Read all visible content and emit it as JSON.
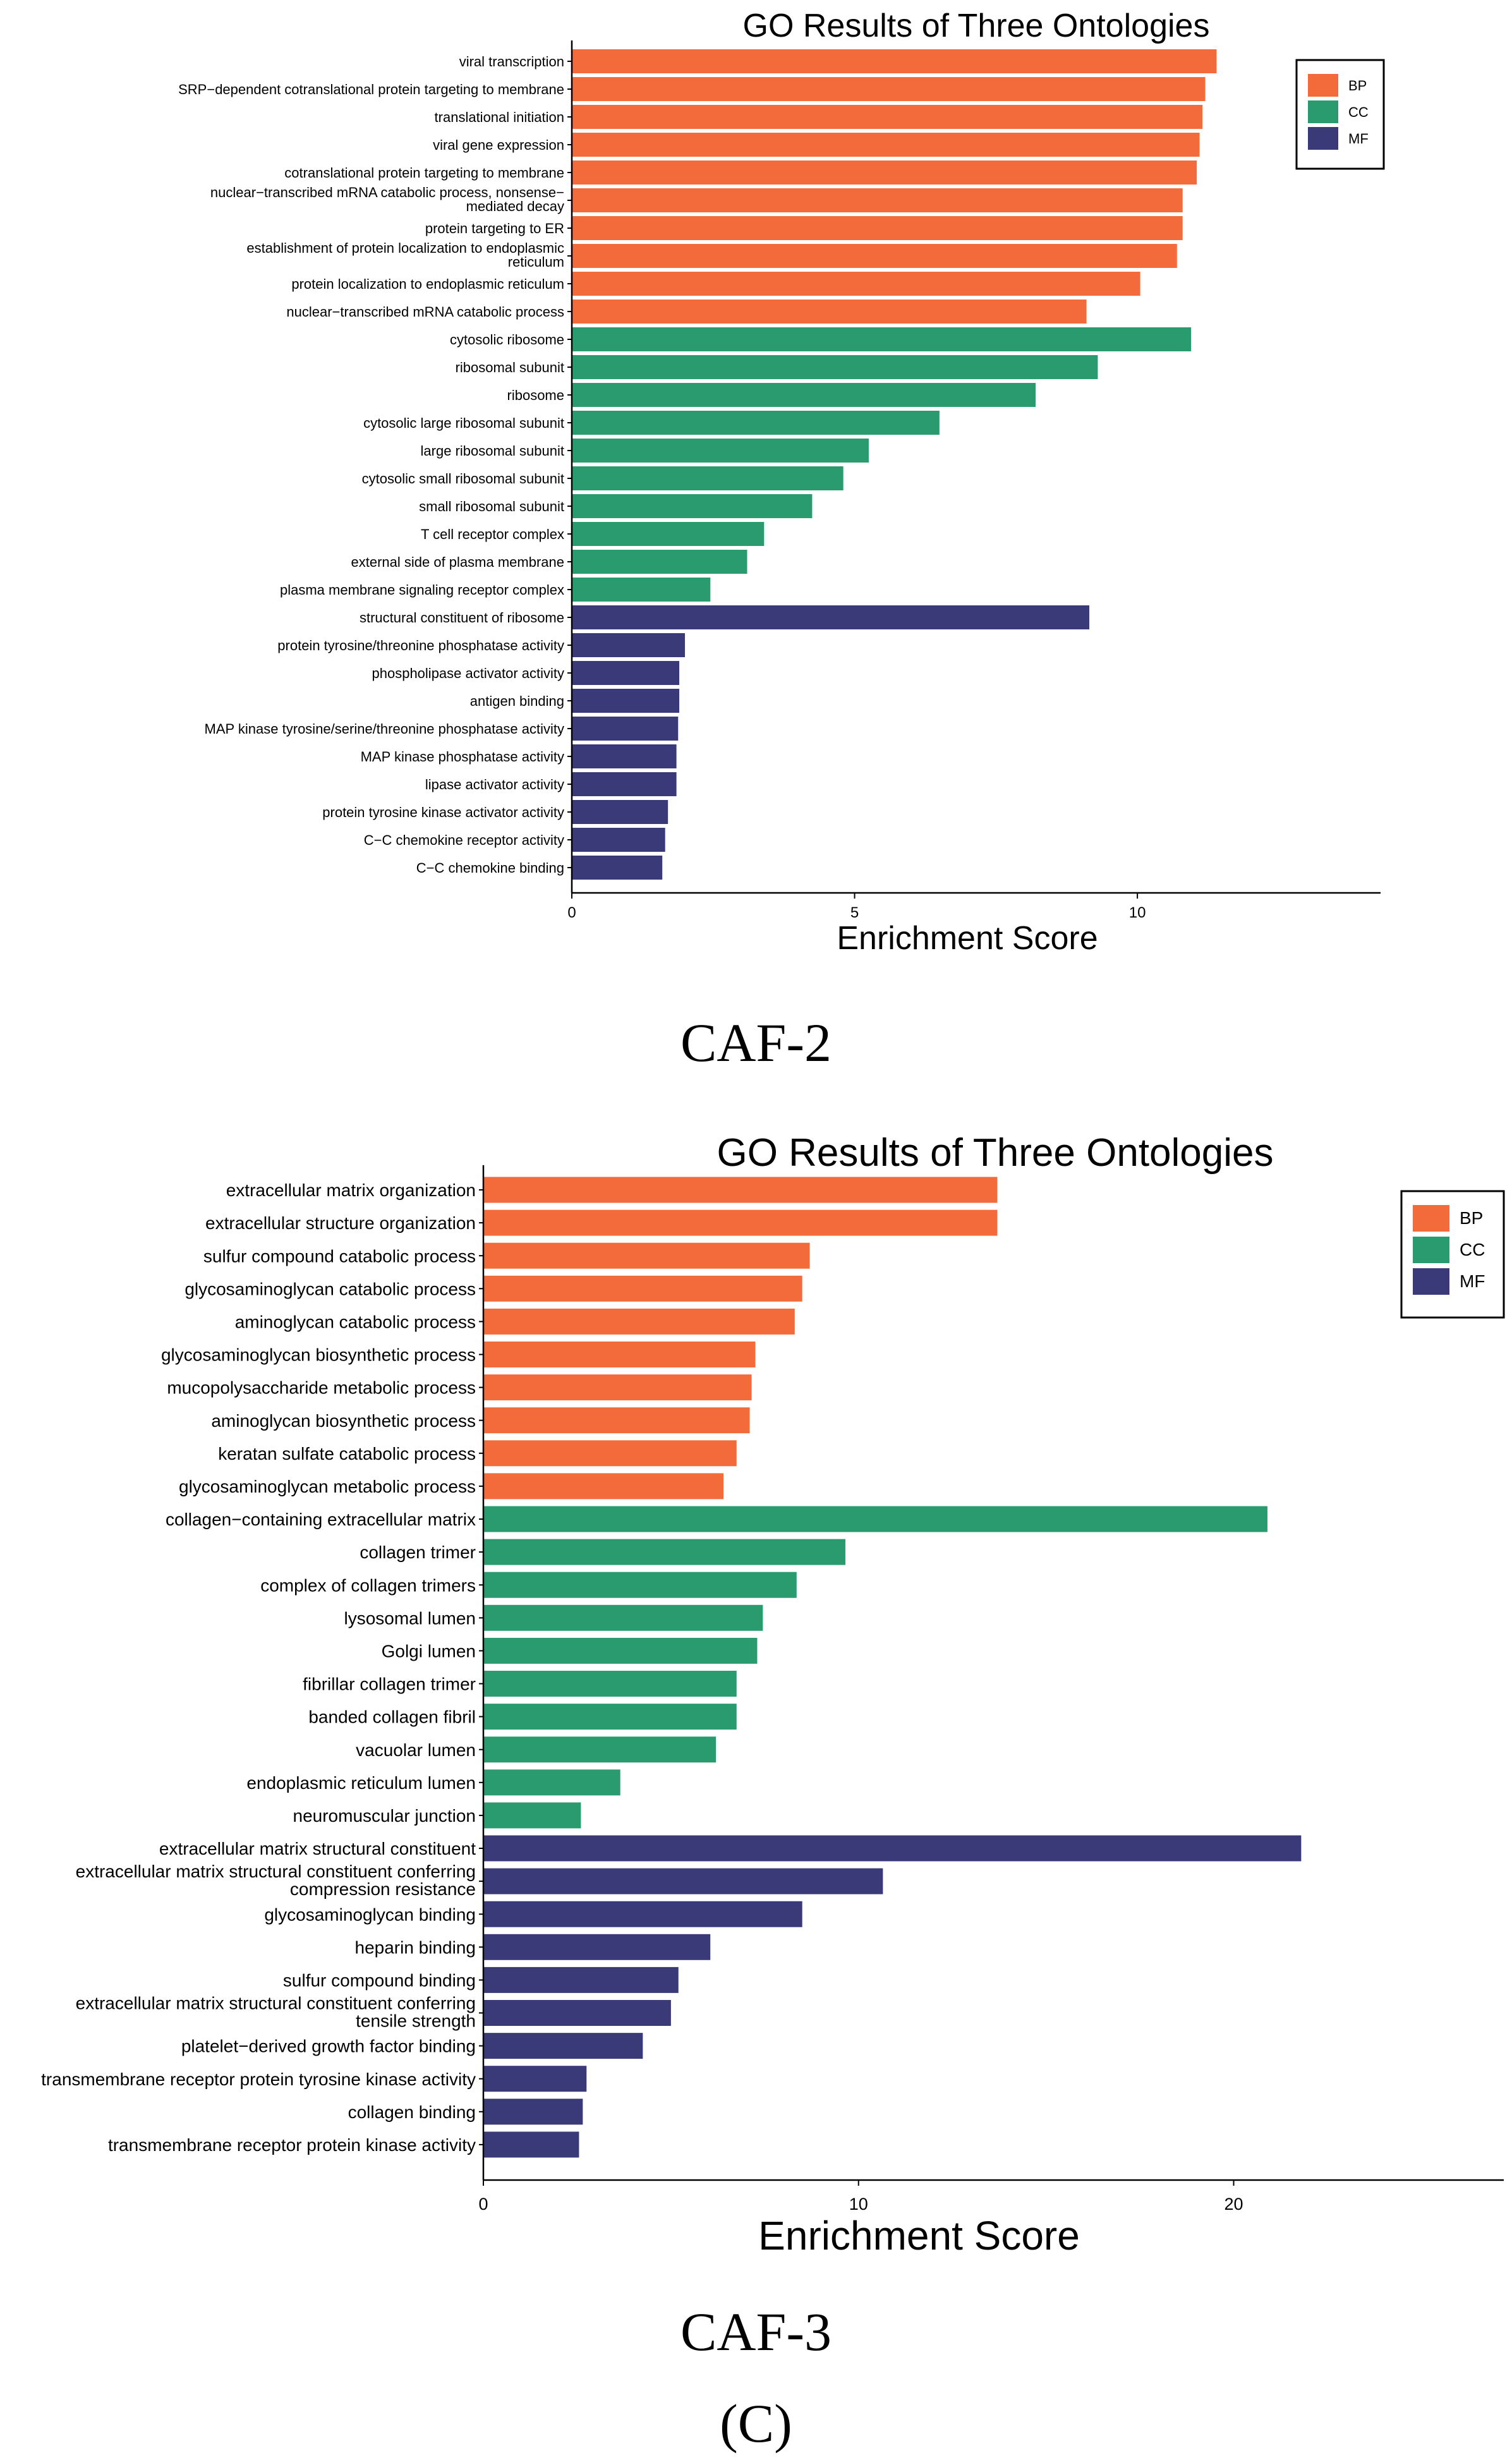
{
  "colors": {
    "BP": "#F36A3B",
    "CC": "#2A9A6F",
    "MF": "#3B3A78"
  },
  "captions": {
    "chart1": "CAF-2",
    "chart2": "CAF-3",
    "panel": "(C)"
  },
  "chart_data": [
    {
      "type": "bar",
      "orientation": "horizontal",
      "title": "GO Results of Three Ontologies",
      "xlabel": "Enrichment Score",
      "ylabel": "",
      "xlim": [
        0,
        14.3
      ],
      "xticks": [
        0,
        5,
        10
      ],
      "legend": {
        "position": "top-right",
        "entries": [
          "BP",
          "CC",
          "MF"
        ]
      },
      "bars": [
        {
          "label": "viral transcription",
          "value": 11.4,
          "ontology": "BP"
        },
        {
          "label": "SRP−dependent cotranslational protein targeting to membrane",
          "value": 11.2,
          "ontology": "BP"
        },
        {
          "label": "translational initiation",
          "value": 11.15,
          "ontology": "BP"
        },
        {
          "label": "viral gene expression",
          "value": 11.1,
          "ontology": "BP"
        },
        {
          "label": "cotranslational protein targeting to membrane",
          "value": 11.05,
          "ontology": "BP"
        },
        {
          "label": "nuclear−transcribed mRNA catabolic process, nonsense−\nmediated decay",
          "value": 10.8,
          "ontology": "BP"
        },
        {
          "label": "protein targeting to ER",
          "value": 10.8,
          "ontology": "BP"
        },
        {
          "label": "establishment of protein localization to endoplasmic\nreticulum",
          "value": 10.7,
          "ontology": "BP"
        },
        {
          "label": "protein localization to endoplasmic reticulum",
          "value": 10.05,
          "ontology": "BP"
        },
        {
          "label": "nuclear−transcribed mRNA catabolic process",
          "value": 9.1,
          "ontology": "BP"
        },
        {
          "label": "cytosolic ribosome",
          "value": 10.95,
          "ontology": "CC"
        },
        {
          "label": "ribosomal subunit",
          "value": 9.3,
          "ontology": "CC"
        },
        {
          "label": "ribosome",
          "value": 8.2,
          "ontology": "CC"
        },
        {
          "label": "cytosolic large ribosomal subunit",
          "value": 6.5,
          "ontology": "CC"
        },
        {
          "label": "large ribosomal subunit",
          "value": 5.25,
          "ontology": "CC"
        },
        {
          "label": "cytosolic small ribosomal subunit",
          "value": 4.8,
          "ontology": "CC"
        },
        {
          "label": "small ribosomal subunit",
          "value": 4.25,
          "ontology": "CC"
        },
        {
          "label": "T cell receptor complex",
          "value": 3.4,
          "ontology": "CC"
        },
        {
          "label": "external side of plasma membrane",
          "value": 3.1,
          "ontology": "CC"
        },
        {
          "label": "plasma membrane signaling receptor complex",
          "value": 2.45,
          "ontology": "CC"
        },
        {
          "label": "structural constituent of ribosome",
          "value": 9.15,
          "ontology": "MF"
        },
        {
          "label": "protein tyrosine/threonine phosphatase activity",
          "value": 2.0,
          "ontology": "MF"
        },
        {
          "label": "phospholipase activator activity",
          "value": 1.9,
          "ontology": "MF"
        },
        {
          "label": "antigen binding",
          "value": 1.9,
          "ontology": "MF"
        },
        {
          "label": "MAP kinase tyrosine/serine/threonine phosphatase activity",
          "value": 1.88,
          "ontology": "MF"
        },
        {
          "label": "MAP kinase phosphatase activity",
          "value": 1.85,
          "ontology": "MF"
        },
        {
          "label": "lipase activator activity",
          "value": 1.85,
          "ontology": "MF"
        },
        {
          "label": "protein tyrosine kinase activator activity",
          "value": 1.7,
          "ontology": "MF"
        },
        {
          "label": "C−C chemokine receptor activity",
          "value": 1.65,
          "ontology": "MF"
        },
        {
          "label": "C−C chemokine binding",
          "value": 1.6,
          "ontology": "MF"
        }
      ]
    },
    {
      "type": "bar",
      "orientation": "horizontal",
      "title": "GO Results of Three Ontologies",
      "xlabel": "Enrichment Score",
      "ylabel": "",
      "xlim": [
        0,
        27.2
      ],
      "xticks": [
        0,
        10,
        20
      ],
      "legend": {
        "position": "top-right",
        "entries": [
          "BP",
          "CC",
          "MF"
        ]
      },
      "bars": [
        {
          "label": "extracellular matrix organization",
          "value": 13.7,
          "ontology": "BP"
        },
        {
          "label": "extracellular structure organization",
          "value": 13.7,
          "ontology": "BP"
        },
        {
          "label": "sulfur compound catabolic process",
          "value": 8.7,
          "ontology": "BP"
        },
        {
          "label": "glycosaminoglycan catabolic process",
          "value": 8.5,
          "ontology": "BP"
        },
        {
          "label": "aminoglycan catabolic process",
          "value": 8.3,
          "ontology": "BP"
        },
        {
          "label": "glycosaminoglycan biosynthetic process",
          "value": 7.25,
          "ontology": "BP"
        },
        {
          "label": "mucopolysaccharide metabolic process",
          "value": 7.15,
          "ontology": "BP"
        },
        {
          "label": "aminoglycan biosynthetic process",
          "value": 7.1,
          "ontology": "BP"
        },
        {
          "label": "keratan sulfate catabolic process",
          "value": 6.75,
          "ontology": "BP"
        },
        {
          "label": "glycosaminoglycan metabolic process",
          "value": 6.4,
          "ontology": "BP"
        },
        {
          "label": "collagen−containing extracellular matrix",
          "value": 20.9,
          "ontology": "CC"
        },
        {
          "label": "collagen trimer",
          "value": 9.65,
          "ontology": "CC"
        },
        {
          "label": "complex of collagen trimers",
          "value": 8.35,
          "ontology": "CC"
        },
        {
          "label": "lysosomal lumen",
          "value": 7.45,
          "ontology": "CC"
        },
        {
          "label": "Golgi lumen",
          "value": 7.3,
          "ontology": "CC"
        },
        {
          "label": "fibrillar collagen trimer",
          "value": 6.75,
          "ontology": "CC"
        },
        {
          "label": "banded collagen fibril",
          "value": 6.75,
          "ontology": "CC"
        },
        {
          "label": "vacuolar lumen",
          "value": 6.2,
          "ontology": "CC"
        },
        {
          "label": "endoplasmic reticulum lumen",
          "value": 3.65,
          "ontology": "CC"
        },
        {
          "label": "neuromuscular junction",
          "value": 2.6,
          "ontology": "CC"
        },
        {
          "label": "extracellular matrix structural constituent",
          "value": 21.8,
          "ontology": "MF"
        },
        {
          "label": "extracellular matrix structural constituent conferring\ncompression resistance",
          "value": 10.65,
          "ontology": "MF"
        },
        {
          "label": "glycosaminoglycan binding",
          "value": 8.5,
          "ontology": "MF"
        },
        {
          "label": "heparin binding",
          "value": 6.05,
          "ontology": "MF"
        },
        {
          "label": "sulfur compound binding",
          "value": 5.2,
          "ontology": "MF"
        },
        {
          "label": "extracellular matrix structural constituent conferring\ntensile strength",
          "value": 5.0,
          "ontology": "MF"
        },
        {
          "label": "platelet−derived growth factor binding",
          "value": 4.25,
          "ontology": "MF"
        },
        {
          "label": "transmembrane receptor protein tyrosine kinase activity",
          "value": 2.75,
          "ontology": "MF"
        },
        {
          "label": "collagen binding",
          "value": 2.65,
          "ontology": "MF"
        },
        {
          "label": "transmembrane receptor protein kinase activity",
          "value": 2.55,
          "ontology": "MF"
        }
      ]
    }
  ]
}
